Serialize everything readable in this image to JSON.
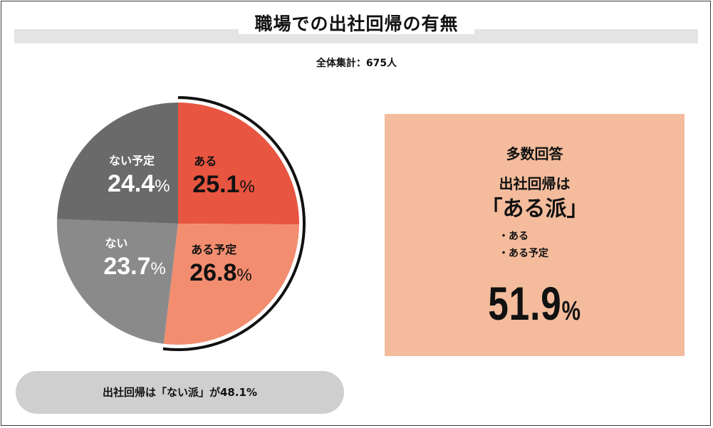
{
  "title": "職場での出社回帰の有無",
  "total_label": "全体集計：675人",
  "chart_data": {
    "type": "pie",
    "title": "職場での出社回帰の有無",
    "slices": [
      {
        "label": "ある",
        "value": 25.1,
        "value_text": "25.1",
        "color": "#e85540",
        "label_color": "#111111"
      },
      {
        "label": "ある予定",
        "value": 26.8,
        "value_text": "26.8",
        "color": "#f28d70",
        "label_color": "#111111"
      },
      {
        "label": "ない",
        "value": 23.7,
        "value_text": "23.7",
        "color": "#8a8a8a",
        "label_color": "#ffffff"
      },
      {
        "label": "ない予定",
        "value": 24.4,
        "value_text": "24.4",
        "color": "#6a6a6a",
        "label_color": "#ffffff"
      }
    ],
    "unit": "%",
    "highlight_arc": [
      "ある",
      "ある予定"
    ],
    "highlight_color": "#111111"
  },
  "panel": {
    "heading": "多数回答",
    "subheading": "出社回帰は",
    "main": "「ある派」",
    "items": [
      "・ある",
      "・ある予定"
    ],
    "percent_value": "51.9",
    "percent_unit": "%",
    "background": "#f4bc9c"
  },
  "footer_note": "出社回帰は「ない派」が48.1%"
}
